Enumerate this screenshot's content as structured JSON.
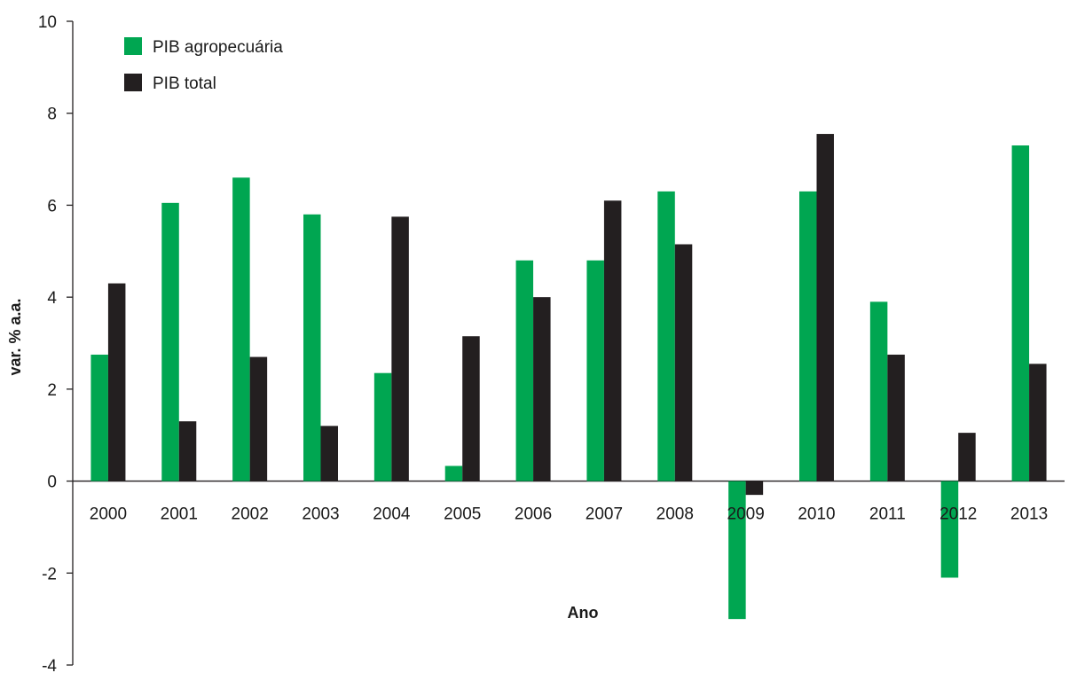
{
  "chart_data": {
    "type": "bar",
    "title": "",
    "xlabel": "Ano",
    "ylabel": "var. % a.a.",
    "ylim": [
      -4,
      10
    ],
    "yticks": [
      -4,
      -2,
      0,
      2,
      4,
      6,
      8,
      10
    ],
    "grid": false,
    "legend_position": "top-left",
    "categories": [
      "2000",
      "2001",
      "2002",
      "2003",
      "2004",
      "2005",
      "2006",
      "2007",
      "2008",
      "2009",
      "2010",
      "2011",
      "2012",
      "2013"
    ],
    "series": [
      {
        "name": "PIB agropecuária",
        "color": "#00a651",
        "values": [
          2.75,
          6.05,
          6.6,
          5.8,
          2.35,
          0.33,
          4.8,
          4.8,
          6.3,
          -3.0,
          6.3,
          3.9,
          -2.1,
          7.3
        ]
      },
      {
        "name": "PIB total",
        "color": "#231f20",
        "values": [
          4.3,
          1.3,
          2.7,
          1.2,
          5.75,
          3.15,
          4.0,
          6.1,
          5.15,
          -0.3,
          7.55,
          2.75,
          1.05,
          2.55
        ]
      }
    ]
  }
}
